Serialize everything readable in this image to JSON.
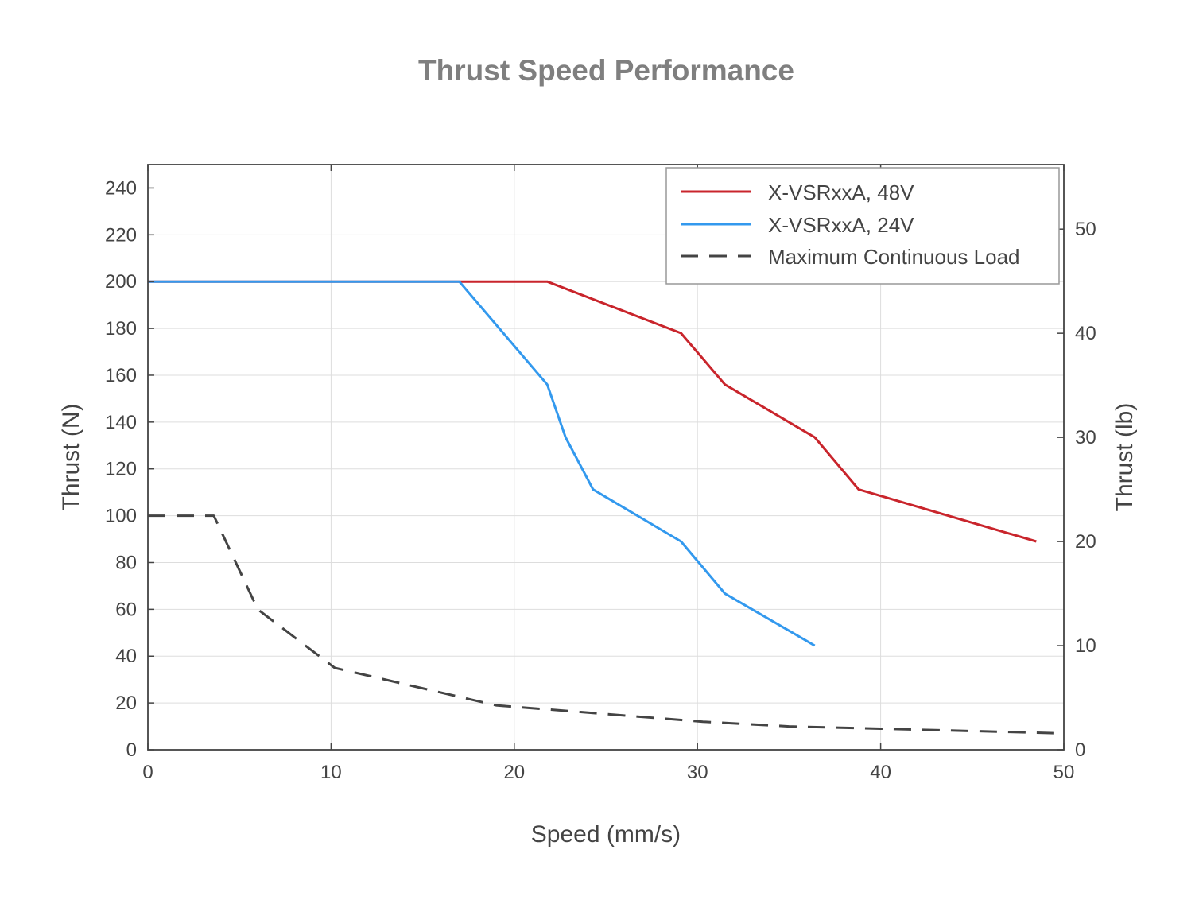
{
  "chart_data": {
    "type": "line",
    "title": "Thrust Speed Performance",
    "xlabel": "Speed (mm/s)",
    "ylabel": "Thrust (N)",
    "y2label": "Thrust (lb)",
    "xlim": [
      0,
      50
    ],
    "ylim": [
      0,
      250
    ],
    "y2lim": [
      0,
      56.2
    ],
    "xticks": [
      0,
      10,
      20,
      30,
      40,
      50
    ],
    "yticks": [
      0,
      20,
      40,
      60,
      80,
      100,
      120,
      140,
      160,
      180,
      200,
      220,
      240
    ],
    "y2ticks": [
      0,
      10,
      20,
      30,
      40,
      50
    ],
    "grid": true,
    "legend_position": "top-right",
    "series": [
      {
        "name": "X-VSRxxA, 48V",
        "color": "#c9252c",
        "style": "solid",
        "x": [
          0,
          21.8,
          29.1,
          31.5,
          36.4,
          38.8,
          48.5
        ],
        "y": [
          200,
          200,
          178,
          156,
          133.5,
          111.2,
          89
        ]
      },
      {
        "name": "X-VSRxxA, 24V",
        "color": "#3399ee",
        "style": "solid",
        "x": [
          0,
          17,
          21.8,
          22.8,
          24.3,
          29.1,
          31.5,
          36.4
        ],
        "y": [
          200,
          200,
          156,
          133.5,
          111.2,
          89,
          66.7,
          44.5
        ]
      },
      {
        "name": "Maximum Continuous Load",
        "color": "#444444",
        "style": "dashed",
        "x": [
          0,
          3.6,
          6,
          10.2,
          19,
          30.3,
          35,
          40,
          50
        ],
        "y": [
          100,
          100,
          60,
          35,
          19,
          12,
          10,
          9,
          7
        ]
      }
    ]
  }
}
